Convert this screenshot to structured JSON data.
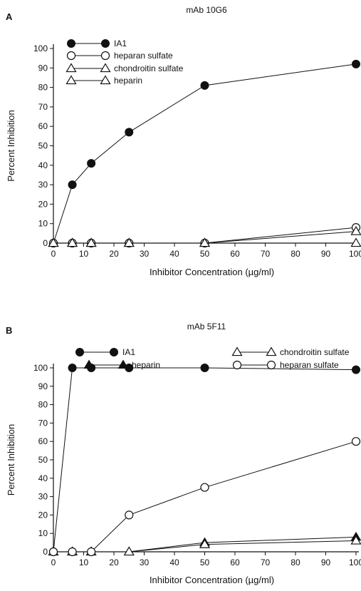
{
  "chart_data": [
    {
      "type": "line",
      "panel_label": "A",
      "title": "mAb 10G6",
      "xlabel": "Inhibitor Concentration (µg/ml)",
      "ylabel": "Percent Inhibition",
      "xlim": [
        0,
        100
      ],
      "ylim": [
        0,
        100
      ],
      "x_ticks": [
        0,
        10,
        20,
        30,
        40,
        50,
        60,
        70,
        80,
        90,
        100
      ],
      "y_ticks": [
        0,
        10,
        20,
        30,
        40,
        50,
        60,
        70,
        80,
        90,
        100
      ],
      "legend_position": "top-left",
      "series": [
        {
          "name": "IA1",
          "marker": "filled-circle",
          "x": [
            0,
            6.25,
            12.5,
            25,
            50,
            100
          ],
          "y": [
            0,
            30,
            41,
            57,
            81,
            92
          ]
        },
        {
          "name": "heparan sulfate",
          "marker": "open-circle",
          "x": [
            0,
            6.25,
            12.5,
            25,
            50,
            100
          ],
          "y": [
            0,
            0,
            0,
            0,
            0,
            8
          ]
        },
        {
          "name": "chondroitin sulfate",
          "marker": "open-triangle",
          "x": [
            0,
            6.25,
            12.5,
            25,
            50,
            100
          ],
          "y": [
            0,
            0,
            0,
            0,
            0,
            6
          ]
        },
        {
          "name": "heparin",
          "marker": "open-triangle",
          "x": [
            0,
            6.25,
            12.5,
            25,
            50,
            100
          ],
          "y": [
            0,
            0,
            0,
            0,
            0,
            0
          ]
        }
      ]
    },
    {
      "type": "line",
      "panel_label": "B",
      "title": "mAb 5F11",
      "xlabel": "Inhibitor Concentration (µg/ml)",
      "ylabel": "Percent Inhibition",
      "xlim": [
        0,
        100
      ],
      "ylim": [
        0,
        100
      ],
      "x_ticks": [
        0,
        10,
        20,
        30,
        40,
        50,
        60,
        70,
        80,
        90,
        100
      ],
      "y_ticks": [
        0,
        10,
        20,
        30,
        40,
        50,
        60,
        70,
        80,
        90,
        100
      ],
      "legend_position": "top",
      "series": [
        {
          "name": "IA1",
          "marker": "filled-circle",
          "x": [
            0,
            6.25,
            12.5,
            25,
            50,
            100
          ],
          "y": [
            0,
            100,
            100,
            100,
            100,
            99
          ]
        },
        {
          "name": "heparin",
          "marker": "filled-triangle",
          "x": [
            0,
            6.25,
            12.5,
            25,
            50,
            100
          ],
          "y": [
            0,
            0,
            0,
            0,
            5,
            8
          ]
        },
        {
          "name": "chondroitin sulfate",
          "marker": "open-triangle",
          "x": [
            0,
            6.25,
            12.5,
            25,
            50,
            100
          ],
          "y": [
            0,
            0,
            0,
            0,
            4,
            6
          ]
        },
        {
          "name": "heparan sulfate",
          "marker": "open-circle",
          "x": [
            0,
            6.25,
            12.5,
            25,
            50,
            100
          ],
          "y": [
            0,
            0,
            0,
            20,
            35,
            60
          ]
        }
      ]
    }
  ]
}
